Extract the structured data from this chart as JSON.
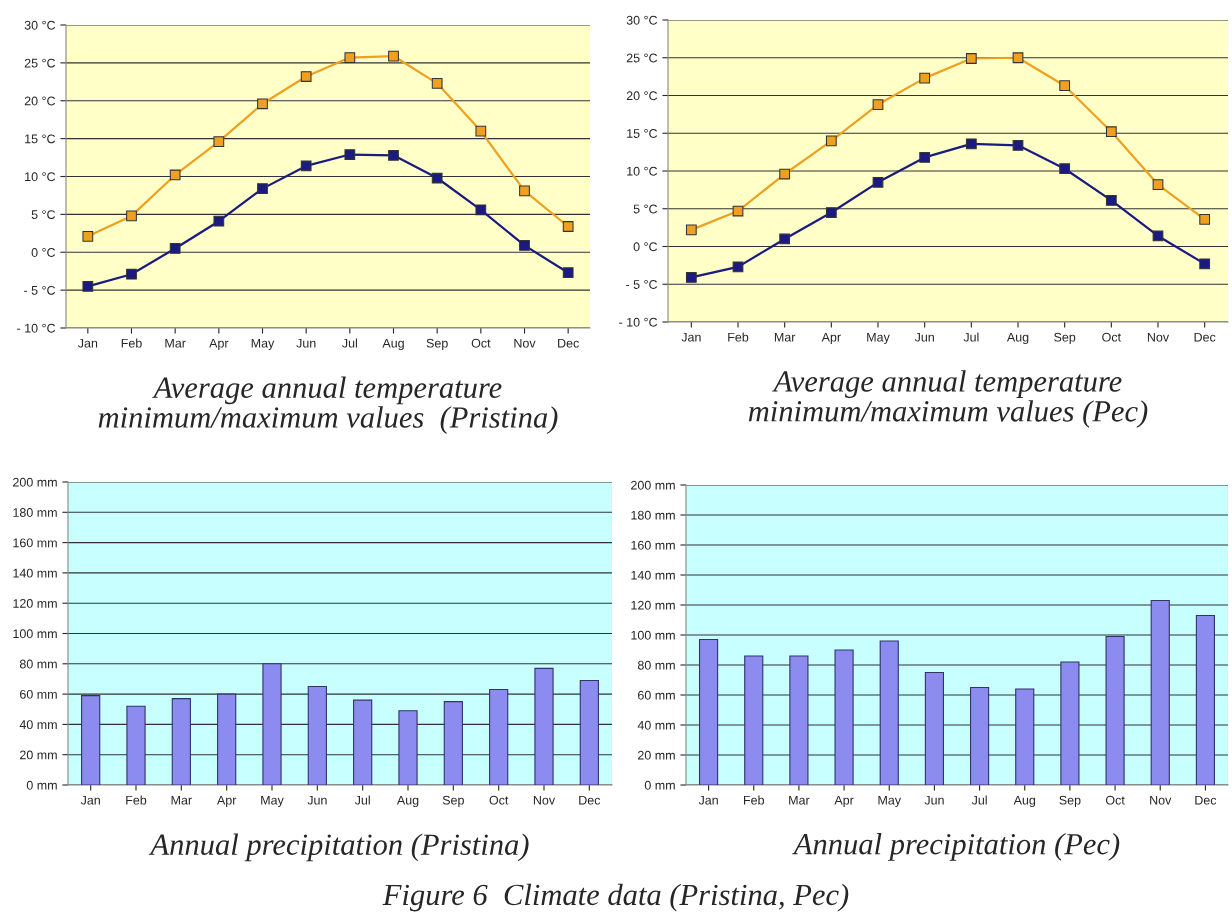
{
  "chart_data": [
    {
      "type": "line",
      "title": "Average annual temperature\nminimum/maximum values  (Pristina)",
      "categories": [
        "Jan",
        "Feb",
        "Mar",
        "Apr",
        "May",
        "Jun",
        "Jul",
        "Aug",
        "Sep",
        "Oct",
        "Nov",
        "Dec"
      ],
      "series": [
        {
          "color": "#f0a020",
          "values": [
            2.1,
            4.8,
            10.2,
            14.6,
            19.6,
            23.2,
            25.7,
            25.9,
            22.3,
            16.0,
            8.1,
            3.4
          ]
        },
        {
          "color": "#1a1a80",
          "values": [
            -4.5,
            -2.9,
            0.5,
            4.1,
            8.4,
            11.4,
            12.9,
            12.8,
            9.8,
            5.6,
            0.9,
            -2.7
          ]
        }
      ],
      "ylim": [
        -10,
        30
      ],
      "yticks": [
        {
          "value": -10,
          "label": "- 10 °C"
        },
        {
          "value": -5,
          "label": "- 5 °C"
        },
        {
          "value": 0,
          "label": "0 °C"
        },
        {
          "value": 5,
          "label": "5 °C"
        },
        {
          "value": 10,
          "label": "10 °C"
        },
        {
          "value": 15,
          "label": "15 °C"
        },
        {
          "value": 20,
          "label": "20 °C"
        },
        {
          "value": 25,
          "label": "25 °C"
        },
        {
          "value": 30,
          "label": "30 °C"
        }
      ],
      "grid": "y",
      "marker": "square"
    },
    {
      "type": "line",
      "title": "Average annual temperature\nminimum/maximum values (Pec)",
      "categories": [
        "Jan",
        "Feb",
        "Mar",
        "Apr",
        "May",
        "Jun",
        "Jul",
        "Aug",
        "Sep",
        "Oct",
        "Nov",
        "Dec"
      ],
      "series": [
        {
          "color": "#f0a020",
          "values": [
            2.2,
            4.7,
            9.6,
            14.0,
            18.8,
            22.3,
            24.9,
            25.0,
            21.3,
            15.2,
            8.2,
            3.6
          ]
        },
        {
          "color": "#1a1a80",
          "values": [
            -4.1,
            -2.7,
            1.0,
            4.5,
            8.5,
            11.8,
            13.6,
            13.4,
            10.3,
            6.1,
            1.4,
            -2.3
          ]
        }
      ],
      "ylim": [
        -10,
        30
      ],
      "yticks": [
        {
          "value": -10,
          "label": "- 10 °C"
        },
        {
          "value": -5,
          "label": "- 5 °C"
        },
        {
          "value": 0,
          "label": "0 °C"
        },
        {
          "value": 5,
          "label": "5 °C"
        },
        {
          "value": 10,
          "label": "10 °C"
        },
        {
          "value": 15,
          "label": "15 °C"
        },
        {
          "value": 20,
          "label": "20 °C"
        },
        {
          "value": 25,
          "label": "25 °C"
        },
        {
          "value": 30,
          "label": "30 °C"
        }
      ],
      "grid": "y",
      "marker": "square"
    },
    {
      "type": "bar",
      "title": "Annual precipitation (Pristina)",
      "categories": [
        "Jan",
        "Feb",
        "Mar",
        "Apr",
        "May",
        "Jun",
        "Jul",
        "Aug",
        "Sep",
        "Oct",
        "Nov",
        "Dec"
      ],
      "values": [
        59,
        52,
        57,
        60,
        80,
        65,
        56,
        49,
        55,
        63,
        77,
        69
      ],
      "color": "#8c8cf0",
      "ylim": [
        0,
        200
      ],
      "yticks": [
        {
          "value": 0,
          "label": "0 mm"
        },
        {
          "value": 20,
          "label": "20 mm"
        },
        {
          "value": 40,
          "label": "40 mm"
        },
        {
          "value": 60,
          "label": "60 mm"
        },
        {
          "value": 80,
          "label": "80 mm"
        },
        {
          "value": 100,
          "label": "100 mm"
        },
        {
          "value": 120,
          "label": "120 mm"
        },
        {
          "value": 140,
          "label": "140 mm"
        },
        {
          "value": 160,
          "label": "160 mm"
        },
        {
          "value": 180,
          "label": "180 mm"
        },
        {
          "value": 200,
          "label": "200 mm"
        }
      ],
      "grid": "y"
    },
    {
      "type": "bar",
      "title": "Annual precipitation (Pec)",
      "categories": [
        "Jan",
        "Feb",
        "Mar",
        "Apr",
        "May",
        "Jun",
        "Jul",
        "Aug",
        "Sep",
        "Oct",
        "Nov",
        "Dec"
      ],
      "values": [
        97,
        86,
        86,
        90,
        96,
        75,
        65,
        64,
        82,
        99,
        123,
        113
      ],
      "color": "#8c8cf0",
      "ylim": [
        0,
        200
      ],
      "yticks": [
        {
          "value": 0,
          "label": "0 mm"
        },
        {
          "value": 20,
          "label": "20 mm"
        },
        {
          "value": 40,
          "label": "40 mm"
        },
        {
          "value": 60,
          "label": "60 mm"
        },
        {
          "value": 80,
          "label": "80 mm"
        },
        {
          "value": 100,
          "label": "100 mm"
        },
        {
          "value": 120,
          "label": "120 mm"
        },
        {
          "value": 140,
          "label": "140 mm"
        },
        {
          "value": 160,
          "label": "160 mm"
        },
        {
          "value": 180,
          "label": "180 mm"
        },
        {
          "value": 200,
          "label": "200 mm"
        }
      ],
      "grid": "y",
      "annotations": [
        "Figure 6  Climate data (Pristina, Pec)"
      ]
    }
  ]
}
